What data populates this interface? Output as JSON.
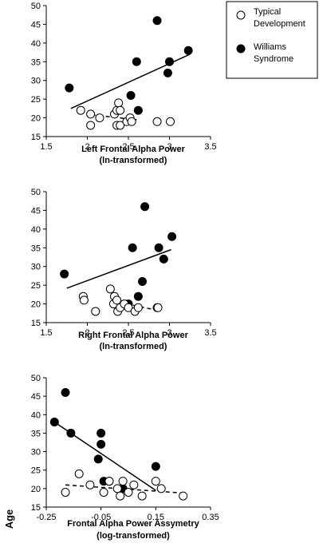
{
  "y_axis_label": "Age",
  "legend": {
    "entries": [
      {
        "lines": [
          "Typical",
          "Development"
        ],
        "marker": "open-circle"
      },
      {
        "lines": [
          "Williams",
          "Syndrome"
        ],
        "marker": "filled-circle"
      }
    ]
  },
  "colors": {
    "wms_fill": "#000000",
    "td_fill": "#ffffff",
    "stroke": "#000000"
  },
  "chart_data": [
    {
      "type": "scatter",
      "xlabel_lines": [
        "Left Frontal Alpha Power",
        "(ln-transformed)"
      ],
      "xlim": [
        1.5,
        3.5
      ],
      "ylim": [
        15,
        50
      ],
      "xticks": [
        1.5,
        2,
        2.5,
        3,
        3.5
      ],
      "xtick_labels": [
        "1.5",
        "2",
        "2.5",
        "3",
        "3.5"
      ],
      "yticks": [
        15,
        20,
        25,
        30,
        35,
        40,
        45,
        50
      ],
      "ytick_labels": [
        "15",
        "20",
        "25",
        "30",
        "35",
        "40",
        "45",
        "50"
      ],
      "series": [
        {
          "name": "Williams Syndrome",
          "marker": "filled",
          "trend": "solid",
          "trendline": [
            [
              1.8,
              22.5
            ],
            [
              3.25,
              37.0
            ]
          ],
          "points": [
            [
              1.78,
              28
            ],
            [
              2.53,
              26
            ],
            [
              2.6,
              35
            ],
            [
              2.62,
              22
            ],
            [
              2.85,
              46
            ],
            [
              2.98,
              32
            ],
            [
              3.0,
              35
            ],
            [
              3.23,
              38
            ]
          ]
        },
        {
          "name": "Typical Development",
          "marker": "open",
          "trend": "dashed",
          "trendline": [
            [
              2.05,
              20.8
            ],
            [
              2.6,
              19.5
            ]
          ],
          "points": [
            [
              1.92,
              22
            ],
            [
              2.04,
              21
            ],
            [
              2.04,
              18
            ],
            [
              2.15,
              20
            ],
            [
              2.33,
              21
            ],
            [
              2.36,
              22
            ],
            [
              2.36,
              18
            ],
            [
              2.38,
              24
            ],
            [
              2.4,
              18
            ],
            [
              2.4,
              22
            ],
            [
              2.48,
              19
            ],
            [
              2.52,
              20
            ],
            [
              2.54,
              19
            ],
            [
              2.85,
              19
            ],
            [
              3.01,
              19
            ]
          ]
        }
      ]
    },
    {
      "type": "scatter",
      "xlabel_lines": [
        "Right Frontal Alpha Power",
        "(ln-transformed)"
      ],
      "xlim": [
        1.5,
        3.5
      ],
      "ylim": [
        15,
        50
      ],
      "xticks": [
        1.5,
        2,
        2.5,
        3,
        3.5
      ],
      "xtick_labels": [
        "1.5",
        "2",
        "2.5",
        "3",
        "3.5"
      ],
      "yticks": [
        15,
        20,
        25,
        30,
        35,
        40,
        45,
        50
      ],
      "ytick_labels": [
        "15",
        "20",
        "25",
        "30",
        "35",
        "40",
        "45",
        "50"
      ],
      "series": [
        {
          "name": "Williams Syndrome",
          "marker": "filled",
          "trend": "solid",
          "trendline": [
            [
              1.75,
              24.2
            ],
            [
              3.02,
              34.5
            ]
          ],
          "points": [
            [
              1.72,
              28
            ],
            [
              2.5,
              20
            ],
            [
              2.55,
              35
            ],
            [
              2.62,
              22
            ],
            [
              2.67,
              26
            ],
            [
              2.7,
              46
            ],
            [
              2.87,
              35
            ],
            [
              2.93,
              32
            ],
            [
              3.03,
              38
            ]
          ]
        },
        {
          "name": "Typical Development",
          "marker": "open",
          "trend": "dashed",
          "trendline": [
            [
              2.3,
              20.8
            ],
            [
              2.85,
              18.3
            ]
          ],
          "points": [
            [
              1.95,
              22
            ],
            [
              1.96,
              21
            ],
            [
              2.1,
              18
            ],
            [
              2.28,
              24
            ],
            [
              2.32,
              20
            ],
            [
              2.33,
              22
            ],
            [
              2.36,
              21
            ],
            [
              2.37,
              18
            ],
            [
              2.4,
              19
            ],
            [
              2.45,
              20
            ],
            [
              2.5,
              19
            ],
            [
              2.58,
              18
            ],
            [
              2.62,
              19
            ],
            [
              2.85,
              19
            ],
            [
              2.86,
              19
            ]
          ]
        }
      ]
    },
    {
      "type": "scatter",
      "xlabel_lines": [
        "Frontal Alpha Power Assymetry",
        "(log-transformed)"
      ],
      "xlim": [
        -0.25,
        0.35
      ],
      "ylim": [
        15,
        50
      ],
      "xticks": [
        -0.25,
        -0.05,
        0.15,
        0.35
      ],
      "xtick_labels": [
        "-0.25",
        "-0.05",
        "0.15",
        "0.35"
      ],
      "yticks": [
        15,
        20,
        25,
        30,
        35,
        40,
        45,
        50
      ],
      "ytick_labels": [
        "15",
        "20",
        "25",
        "30",
        "35",
        "40",
        "45",
        "50"
      ],
      "series": [
        {
          "name": "Williams Syndrome",
          "marker": "filled",
          "trend": "solid",
          "trendline": [
            [
              -0.21,
              37.5
            ],
            [
              0.15,
              19.5
            ]
          ],
          "points": [
            [
              -0.22,
              38
            ],
            [
              -0.18,
              46
            ],
            [
              -0.16,
              35
            ],
            [
              -0.05,
              35
            ],
            [
              -0.05,
              32
            ],
            [
              -0.06,
              28
            ],
            [
              -0.04,
              22
            ],
            [
              -0.02,
              22
            ],
            [
              0.03,
              20
            ],
            [
              0.15,
              26
            ]
          ]
        },
        {
          "name": "Typical Development",
          "marker": "open",
          "trend": "dashed",
          "trendline": [
            [
              -0.18,
              21.0
            ],
            [
              0.25,
              18.8
            ]
          ],
          "points": [
            [
              -0.18,
              19
            ],
            [
              -0.13,
              24
            ],
            [
              -0.09,
              21
            ],
            [
              -0.04,
              19
            ],
            [
              -0.02,
              22
            ],
            [
              0.01,
              20
            ],
            [
              0.02,
              18
            ],
            [
              0.03,
              22
            ],
            [
              0.05,
              19
            ],
            [
              0.07,
              21
            ],
            [
              0.1,
              18
            ],
            [
              0.15,
              22
            ],
            [
              0.17,
              20
            ],
            [
              0.25,
              18
            ]
          ]
        }
      ]
    }
  ]
}
